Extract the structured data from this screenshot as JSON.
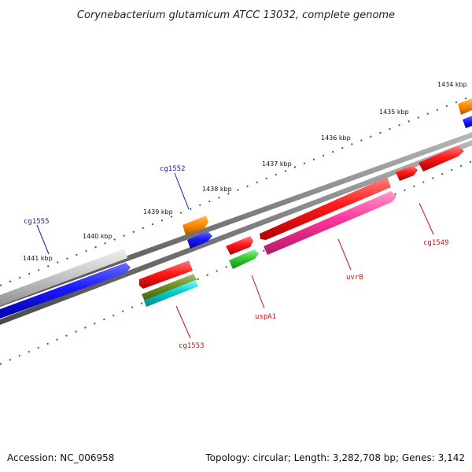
{
  "title": "Corynebacterium glutamicum ATCC 13032, complete genome",
  "footer": {
    "accession": "Accession: NC_006958",
    "topology": "Topology: circular; Length: 3,282,708 bp; Genes: 3,142"
  },
  "ruler": [
    "1434 kbp",
    "1435 kbp",
    "1436 kbp",
    "1437 kbp",
    "1438 kbp",
    "1439 kbp",
    "1440 kbp",
    "1441 kbp"
  ],
  "gene_labels": {
    "cg1555": "cg1555",
    "cg1552": "cg1552",
    "cg1553": "cg1553",
    "uspA1": "uspA1",
    "uvrB": "uvrB",
    "cg1549": "cg1549"
  },
  "colors": {
    "backbone": "#888888",
    "tick": "#1a7a1a",
    "red": "#ff1a1a",
    "blue": "#1a1aff",
    "orange": "#ff8c00",
    "green": "#33cc33",
    "olive": "#6b8e23",
    "cyan": "#00cccc",
    "magenta": "#ff3399",
    "grey": "#c8c8c8",
    "label_blue": "#1a1aaa",
    "label_red": "#cc1111"
  }
}
